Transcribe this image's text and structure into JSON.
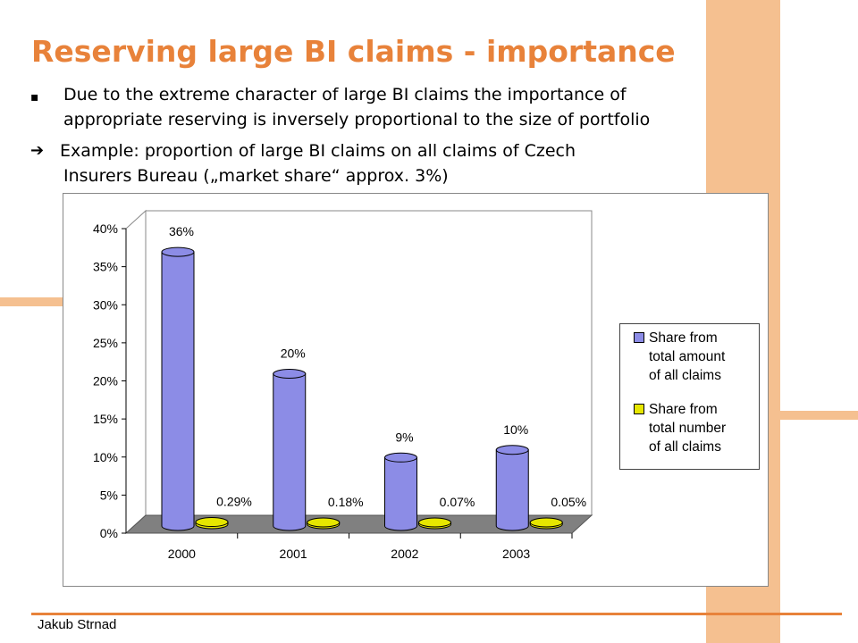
{
  "slide": {
    "title": "Reserving large BI claims - importance",
    "bullets": [
      {
        "marker": "▪",
        "lines": [
          "Due to the extreme character of large BI claims the importance of",
          "appropriate reserving is inversely proportional to the size of portfolio"
        ]
      },
      {
        "marker": "➔",
        "lines": [
          "Example: proportion of large BI claims on all claims of Czech",
          "Insurers Bureau („market share“ approx. 3%)"
        ]
      }
    ],
    "author": "Jakub Strnad"
  },
  "colors": {
    "accent": "#e8823a",
    "decoration": "#f5c090",
    "series_1": "#8c8ce6",
    "series_2": "#e6e600",
    "floor": "#808080"
  },
  "chart_data": {
    "type": "bar",
    "style": "3d-cylinder",
    "categories": [
      "2000",
      "2001",
      "2002",
      "2003"
    ],
    "series": [
      {
        "name": "Share from total amount of all claims",
        "values": [
          0.36,
          0.2,
          0.09,
          0.1
        ],
        "labels": [
          "36%",
          "20%",
          "9%",
          "10%"
        ],
        "color": "#8c8ce6"
      },
      {
        "name": "Share from total number of all claims",
        "values": [
          0.0029,
          0.0018,
          0.0007,
          0.0005
        ],
        "labels": [
          "0.29%",
          "0.18%",
          "0.07%",
          "0.05%"
        ],
        "color": "#e6e600"
      }
    ],
    "ylim": [
      0,
      0.4
    ],
    "yticks": [
      "0%",
      "5%",
      "10%",
      "15%",
      "20%",
      "25%",
      "30%",
      "35%",
      "40%"
    ],
    "legend_lines": [
      [
        "Share from",
        "total amount",
        "of all claims"
      ],
      [
        "Share from",
        "total number",
        "of all claims"
      ]
    ],
    "legend_position": "right",
    "grid": false
  }
}
